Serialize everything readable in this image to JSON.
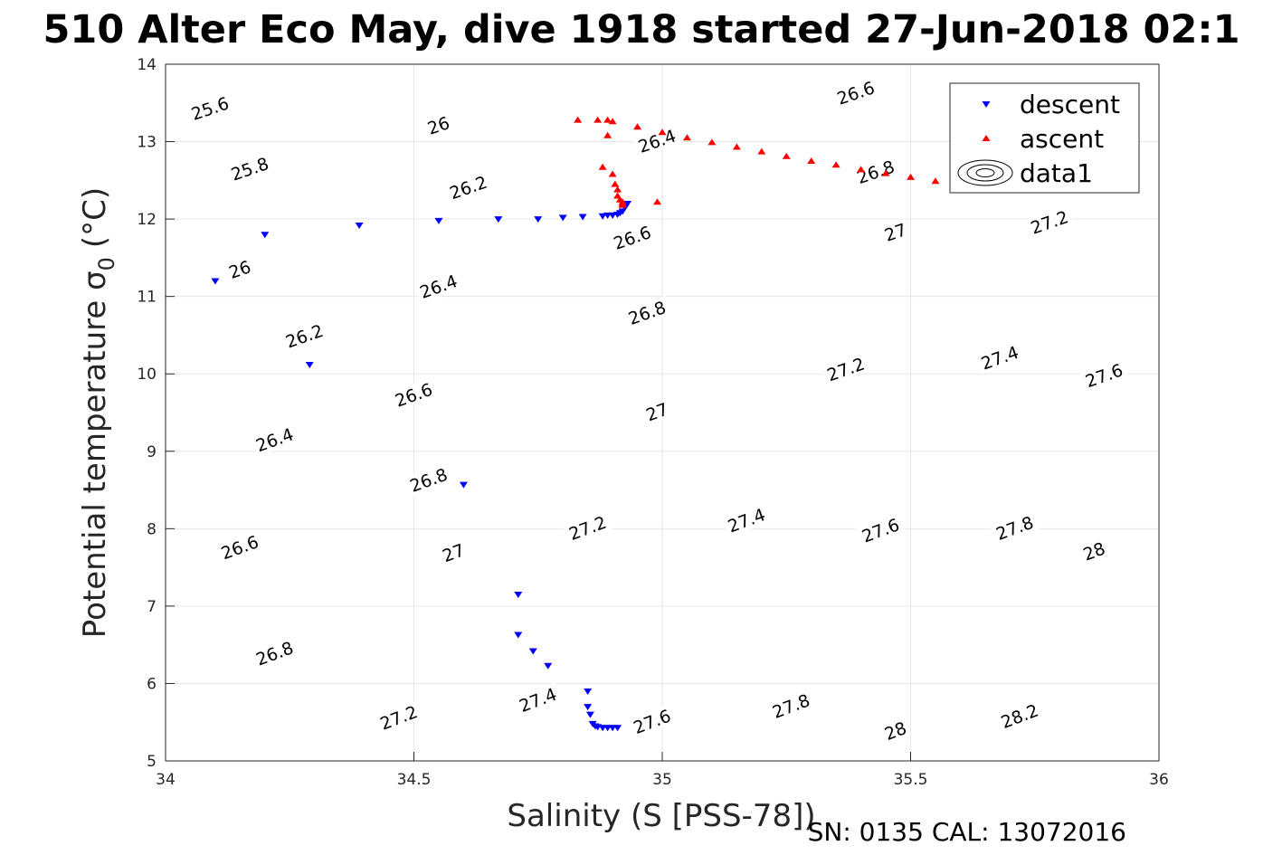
{
  "chart_data": {
    "type": "scatter",
    "title": "510 Alter Eco May, dive 1918 started 27-Jun-2018 02:1",
    "xlabel": "Salinity (S [PSS-78])",
    "ylabel": "Potential temperature σ",
    "ylabel_sub": "0",
    "ylabel_unit": "(°C)",
    "footer": "SN: 0135  CAL: 13072016",
    "xlim": [
      34,
      36
    ],
    "ylim": [
      5,
      14
    ],
    "x_ticks": [
      "34",
      "34.5",
      "35",
      "35.5",
      "36"
    ],
    "y_ticks": [
      "5",
      "6",
      "7",
      "8",
      "9",
      "10",
      "11",
      "12",
      "13",
      "14"
    ],
    "grid": true,
    "legend_position": "top-right",
    "legend": [
      "descent",
      "ascent",
      "data1"
    ],
    "colors": {
      "descent": "#0000ff",
      "ascent": "#ff0000",
      "contour": "#000000",
      "grid": "#e6e6e6"
    },
    "series": [
      {
        "name": "descent",
        "marker": "triangle-down",
        "x": [
          34.1,
          34.2,
          34.29,
          34.39,
          34.55,
          34.67,
          34.75,
          34.8,
          34.84,
          34.88,
          34.89,
          34.9,
          34.91,
          34.915,
          34.92,
          34.925,
          34.93,
          34.6,
          34.71,
          34.71,
          34.74,
          34.77,
          34.85,
          34.85,
          34.855,
          34.86,
          34.865,
          34.87,
          34.88,
          34.89,
          34.9,
          34.91
        ],
        "y": [
          11.2,
          11.8,
          10.12,
          11.92,
          11.98,
          12.0,
          12.0,
          12.02,
          12.03,
          12.04,
          12.05,
          12.05,
          12.06,
          12.08,
          12.1,
          12.15,
          12.2,
          8.57,
          7.15,
          6.63,
          6.42,
          6.23,
          5.9,
          5.7,
          5.6,
          5.48,
          5.45,
          5.44,
          5.43,
          5.43,
          5.43,
          5.43
        ]
      },
      {
        "name": "ascent",
        "marker": "triangle-up",
        "x": [
          34.83,
          34.87,
          34.89,
          34.89,
          34.88,
          34.9,
          34.905,
          34.91,
          34.91,
          34.915,
          34.92,
          34.92,
          34.92,
          34.99,
          34.9,
          34.95,
          35.0,
          35.05,
          35.1,
          35.15,
          35.2,
          35.25,
          35.3,
          35.35,
          35.4,
          35.45,
          35.5,
          35.55,
          35.6,
          35.65,
          35.69
        ],
        "y": [
          13.28,
          13.28,
          13.28,
          13.08,
          12.67,
          12.58,
          12.45,
          12.38,
          12.3,
          12.25,
          12.22,
          12.2,
          12.18,
          12.22,
          13.26,
          13.19,
          13.12,
          13.05,
          12.99,
          12.93,
          12.87,
          12.81,
          12.75,
          12.7,
          12.64,
          12.59,
          12.54,
          12.49,
          12.45,
          12.41,
          12.38
        ]
      }
    ],
    "contours": {
      "name": "data1",
      "levels": [
        25.6,
        25.8,
        26,
        26.2,
        26.4,
        26.6,
        26.8,
        27,
        27.2,
        27.4,
        27.6,
        27.8,
        28,
        28.2
      ],
      "labels": [
        {
          "text": "25.6",
          "x": 34.09,
          "y": 13.42
        },
        {
          "text": "25.8",
          "x": 34.17,
          "y": 12.64
        },
        {
          "text": "26",
          "x": 34.15,
          "y": 11.34
        },
        {
          "text": "26.2",
          "x": 34.28,
          "y": 10.48
        },
        {
          "text": "26.4",
          "x": 34.22,
          "y": 9.14
        },
        {
          "text": "26.6",
          "x": 34.15,
          "y": 7.75
        },
        {
          "text": "26.8",
          "x": 34.22,
          "y": 6.38
        },
        {
          "text": "26",
          "x": 34.55,
          "y": 13.2
        },
        {
          "text": "26.2",
          "x": 34.61,
          "y": 12.4
        },
        {
          "text": "26.4",
          "x": 34.55,
          "y": 11.12
        },
        {
          "text": "26.6",
          "x": 34.5,
          "y": 9.72
        },
        {
          "text": "26.8",
          "x": 34.53,
          "y": 8.62
        },
        {
          "text": "27",
          "x": 34.58,
          "y": 7.68
        },
        {
          "text": "27.2",
          "x": 34.47,
          "y": 5.55
        },
        {
          "text": "26.4",
          "x": 34.99,
          "y": 13.0
        },
        {
          "text": "26.6",
          "x": 34.94,
          "y": 11.75
        },
        {
          "text": "26.8",
          "x": 34.97,
          "y": 10.78
        },
        {
          "text": "27",
          "x": 34.99,
          "y": 9.5
        },
        {
          "text": "27.2",
          "x": 34.85,
          "y": 8.0
        },
        {
          "text": "27.4",
          "x": 34.75,
          "y": 5.78
        },
        {
          "text": "26.6",
          "x": 35.39,
          "y": 13.62
        },
        {
          "text": "26.8",
          "x": 35.43,
          "y": 12.6
        },
        {
          "text": "27",
          "x": 35.47,
          "y": 11.82
        },
        {
          "text": "27.2",
          "x": 35.37,
          "y": 10.05
        },
        {
          "text": "27.4",
          "x": 35.17,
          "y": 8.1
        },
        {
          "text": "27.6",
          "x": 34.98,
          "y": 5.5
        },
        {
          "text": "27.2",
          "x": 35.78,
          "y": 11.95
        },
        {
          "text": "27.4",
          "x": 35.68,
          "y": 10.2
        },
        {
          "text": "27.6",
          "x": 35.44,
          "y": 7.97
        },
        {
          "text": "27.8",
          "x": 35.26,
          "y": 5.7
        },
        {
          "text": "27.6",
          "x": 35.89,
          "y": 9.97
        },
        {
          "text": "27.8",
          "x": 35.71,
          "y": 8.0
        },
        {
          "text": "28",
          "x": 35.47,
          "y": 5.38
        },
        {
          "text": "28",
          "x": 35.87,
          "y": 7.7
        },
        {
          "text": "28.2",
          "x": 35.72,
          "y": 5.57
        }
      ]
    }
  }
}
